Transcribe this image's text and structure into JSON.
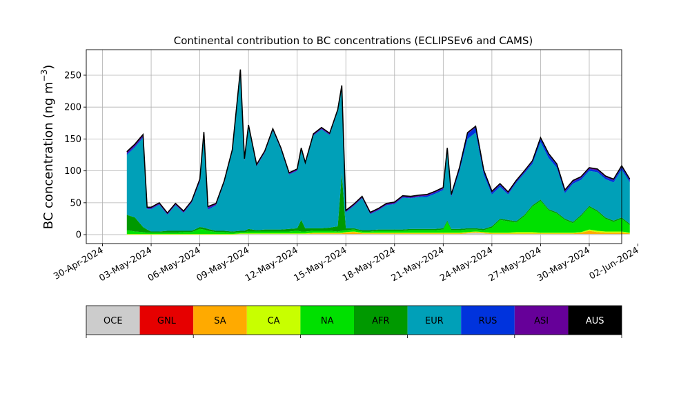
{
  "chart_data": {
    "type": "area",
    "stacked": true,
    "title": "Continental contribution to BC concentrations (ECLIPSEv6 and CAMS)",
    "ylabel_main": "BC concentration (ng m",
    "ylabel_sup": "−3",
    "ylabel_close": ")",
    "xlabel": "",
    "x_range": [
      "2024-04-29",
      "2024-06-01"
    ],
    "ylim": [
      -14,
      290
    ],
    "y_ticks": [
      0,
      50,
      100,
      150,
      200,
      250
    ],
    "x_ticks": [
      {
        "date": "2024-04-30",
        "label": "30-Apr-2024"
      },
      {
        "date": "2024-05-03",
        "label": "03-May-2024"
      },
      {
        "date": "2024-05-06",
        "label": "06-May-2024"
      },
      {
        "date": "2024-05-09",
        "label": "09-May-2024"
      },
      {
        "date": "2024-05-12",
        "label": "12-May-2024"
      },
      {
        "date": "2024-05-15",
        "label": "15-May-2024"
      },
      {
        "date": "2024-05-18",
        "label": "18-May-2024"
      },
      {
        "date": "2024-05-21",
        "label": "21-May-2024"
      },
      {
        "date": "2024-05-24",
        "label": "24-May-2024"
      },
      {
        "date": "2024-05-27",
        "label": "27-May-2024"
      },
      {
        "date": "2024-05-30",
        "label": "30-May-2024"
      },
      {
        "date": "2024-06-02",
        "label": "02-Jun-2024"
      }
    ],
    "grid": true,
    "legend_placement": "bottom",
    "x": [
      "2024-05-01 12:00",
      "2024-05-02 00:00",
      "2024-05-02 12:00",
      "2024-05-02 18:00",
      "2024-05-03 00:00",
      "2024-05-03 12:00",
      "2024-05-04 00:00",
      "2024-05-04 12:00",
      "2024-05-05 00:00",
      "2024-05-05 12:00",
      "2024-05-06 00:00",
      "2024-05-06 06:00",
      "2024-05-06 12:00",
      "2024-05-07 00:00",
      "2024-05-07 12:00",
      "2024-05-08 00:00",
      "2024-05-08 12:00",
      "2024-05-08 18:00",
      "2024-05-09 00:00",
      "2024-05-09 12:00",
      "2024-05-10 00:00",
      "2024-05-10 12:00",
      "2024-05-11 00:00",
      "2024-05-11 12:00",
      "2024-05-12 00:00",
      "2024-05-12 06:00",
      "2024-05-12 12:00",
      "2024-05-13 00:00",
      "2024-05-13 12:00",
      "2024-05-14 00:00",
      "2024-05-14 12:00",
      "2024-05-14 18:00",
      "2024-05-15 00:00",
      "2024-05-15 12:00",
      "2024-05-16 00:00",
      "2024-05-16 12:00",
      "2024-05-17 00:00",
      "2024-05-17 12:00",
      "2024-05-18 00:00",
      "2024-05-18 12:00",
      "2024-05-19 00:00",
      "2024-05-19 12:00",
      "2024-05-20 00:00",
      "2024-05-20 12:00",
      "2024-05-21 00:00",
      "2024-05-21 06:00",
      "2024-05-21 12:00",
      "2024-05-22 00:00",
      "2024-05-22 12:00",
      "2024-05-23 00:00",
      "2024-05-23 12:00",
      "2024-05-24 00:00",
      "2024-05-24 12:00",
      "2024-05-25 00:00",
      "2024-05-25 12:00",
      "2024-05-26 00:00",
      "2024-05-26 12:00",
      "2024-05-27 00:00",
      "2024-05-27 12:00",
      "2024-05-28 00:00",
      "2024-05-28 12:00",
      "2024-05-29 00:00",
      "2024-05-29 12:00",
      "2024-05-30 00:00",
      "2024-05-30 12:00",
      "2024-05-31 00:00",
      "2024-05-31 12:00",
      "2024-06-01 00:00",
      "2024-06-01 12:00"
    ],
    "series": [
      {
        "name": "OCE",
        "color": "#cccccc",
        "values": [
          0,
          0,
          0,
          0,
          0,
          0,
          0,
          0,
          0,
          0,
          0,
          0,
          0,
          0,
          0,
          0,
          1,
          1,
          1,
          1,
          1,
          1,
          1,
          1,
          1,
          1,
          1,
          1,
          1,
          1,
          1,
          1,
          1,
          1,
          1,
          1,
          1,
          1,
          1,
          1,
          1,
          1,
          1,
          1,
          1,
          1,
          1,
          1,
          2,
          3,
          2,
          1,
          1,
          1,
          1,
          1,
          1,
          1,
          1,
          1,
          1,
          1,
          1,
          1,
          1,
          1,
          1,
          1,
          1
        ]
      },
      {
        "name": "GNL",
        "color": "#e60000",
        "values": [
          0,
          0,
          0,
          0,
          0,
          0,
          0,
          0,
          0,
          0,
          0,
          0,
          0,
          0,
          0,
          0,
          0,
          0,
          0,
          0,
          0,
          0,
          0,
          0,
          0,
          0,
          0,
          0,
          0,
          0,
          0,
          0,
          0,
          0,
          0,
          0,
          0,
          0,
          0,
          0,
          0,
          0,
          0,
          0,
          0,
          0,
          0,
          0,
          0,
          0,
          0,
          0,
          0,
          0,
          0,
          0,
          0,
          0,
          0,
          0,
          0,
          0,
          0,
          0,
          0,
          0,
          0,
          0,
          0
        ]
      },
      {
        "name": "SA",
        "color": "#ffaa00",
        "values": [
          0,
          0,
          0,
          0,
          0,
          0,
          0,
          0,
          0,
          0,
          0,
          0,
          0,
          0,
          0,
          0,
          0,
          0,
          0,
          0,
          0,
          0,
          0,
          0,
          0,
          0,
          0,
          1,
          1,
          1,
          1,
          1,
          2,
          3,
          1,
          1,
          1,
          1,
          1,
          1,
          1,
          1,
          1,
          1,
          1,
          1,
          1,
          1,
          1,
          1,
          1,
          1,
          1,
          1,
          1,
          1,
          1,
          1,
          1,
          1,
          1,
          1,
          2,
          5,
          3,
          2,
          2,
          2,
          1
        ]
      },
      {
        "name": "CA",
        "color": "#c8ff00",
        "values": [
          1,
          1,
          1,
          1,
          1,
          1,
          1,
          1,
          1,
          1,
          1,
          1,
          1,
          1,
          1,
          1,
          1,
          1,
          1,
          1,
          1,
          1,
          1,
          1,
          1,
          1,
          1,
          1,
          1,
          1,
          1,
          1,
          1,
          1,
          1,
          1,
          1,
          1,
          1,
          1,
          1,
          1,
          1,
          1,
          1,
          1,
          1,
          1,
          1,
          1,
          1,
          1,
          1,
          1,
          2,
          2,
          2,
          1,
          1,
          1,
          1,
          1,
          1,
          2,
          2,
          2,
          2,
          2,
          1
        ]
      },
      {
        "name": "NA",
        "color": "#00e000",
        "values": [
          6,
          4,
          3,
          2,
          2,
          2,
          2,
          2,
          3,
          3,
          8,
          7,
          5,
          3,
          3,
          2,
          2,
          2,
          3,
          3,
          3,
          3,
          3,
          3,
          4,
          3,
          3,
          3,
          3,
          3,
          2,
          3,
          3,
          3,
          2,
          2,
          3,
          3,
          3,
          3,
          4,
          4,
          4,
          4,
          5,
          17,
          4,
          4,
          4,
          3,
          3,
          8,
          20,
          18,
          15,
          25,
          40,
          50,
          35,
          30,
          20,
          15,
          25,
          35,
          30,
          20,
          15,
          20,
          12
        ]
      },
      {
        "name": "AFR",
        "color": "#009900",
        "values": [
          24,
          22,
          8,
          5,
          2,
          2,
          3,
          3,
          2,
          2,
          3,
          3,
          3,
          2,
          2,
          2,
          2,
          2,
          4,
          2,
          3,
          3,
          3,
          4,
          4,
          18,
          5,
          4,
          4,
          5,
          8,
          90,
          3,
          2,
          2,
          2,
          2,
          2,
          2,
          2,
          2,
          2,
          2,
          2,
          2,
          2,
          2,
          2,
          2,
          2,
          2,
          2,
          2,
          2,
          2,
          2,
          2,
          2,
          2,
          2,
          2,
          2,
          2,
          2,
          2,
          2,
          2,
          2,
          2
        ]
      },
      {
        "name": "EUR",
        "color": "#00a0b8",
        "values": [
          94,
          110,
          140,
          32,
          35,
          42,
          25,
          40,
          28,
          44,
          70,
          145,
          30,
          40,
          75,
          125,
          250,
          110,
          160,
          100,
          120,
          155,
          125,
          85,
          90,
          110,
          100,
          145,
          155,
          145,
          180,
          135,
          25,
          35,
          50,
          25,
          30,
          38,
          40,
          50,
          48,
          50,
          50,
          55,
          60,
          110,
          50,
          90,
          140,
          150,
          85,
          50,
          50,
          40,
          60,
          65,
          65,
          90,
          80,
          70,
          40,
          60,
          55,
          55,
          60,
          60,
          60,
          75,
          65
        ]
      },
      {
        "name": "RUS",
        "color": "#0033dd",
        "values": [
          2,
          2,
          2,
          1,
          1,
          1,
          1,
          1,
          1,
          1,
          2,
          2,
          2,
          1,
          1,
          1,
          1,
          1,
          1,
          1,
          1,
          1,
          1,
          1,
          1,
          1,
          1,
          1,
          1,
          1,
          1,
          1,
          1,
          1,
          1,
          1,
          1,
          1,
          1,
          1,
          1,
          1,
          2,
          2,
          2,
          2,
          2,
          4,
          8,
          8,
          5,
          3,
          3,
          2,
          2,
          2,
          3,
          5,
          5,
          4,
          3,
          3,
          3,
          3,
          3,
          3,
          3,
          4,
          3
        ]
      },
      {
        "name": "ASI",
        "color": "#660099",
        "values": [
          3,
          3,
          3,
          2,
          2,
          2,
          2,
          2,
          2,
          2,
          3,
          3,
          3,
          2,
          2,
          2,
          2,
          2,
          2,
          2,
          2,
          2,
          2,
          2,
          2,
          2,
          2,
          2,
          2,
          2,
          2,
          2,
          2,
          2,
          2,
          2,
          2,
          2,
          2,
          2,
          2,
          2,
          2,
          2,
          2,
          2,
          2,
          2,
          2,
          2,
          2,
          2,
          2,
          2,
          2,
          2,
          2,
          2,
          2,
          2,
          2,
          2,
          2,
          2,
          2,
          2,
          2,
          2,
          2
        ]
      },
      {
        "name": "AUS",
        "color": "#000000",
        "values": [
          0,
          0,
          0,
          0,
          0,
          0,
          0,
          0,
          0,
          0,
          0,
          0,
          0,
          0,
          0,
          0,
          0,
          0,
          0,
          0,
          0,
          0,
          0,
          0,
          0,
          0,
          0,
          0,
          0,
          0,
          0,
          0,
          0,
          0,
          0,
          0,
          0,
          0,
          0,
          0,
          0,
          0,
          0,
          0,
          0,
          0,
          0,
          0,
          0,
          0,
          0,
          0,
          0,
          0,
          0,
          0,
          0,
          0,
          0,
          0,
          0,
          0,
          0,
          0,
          0,
          0,
          0,
          0,
          0
        ]
      }
    ]
  }
}
